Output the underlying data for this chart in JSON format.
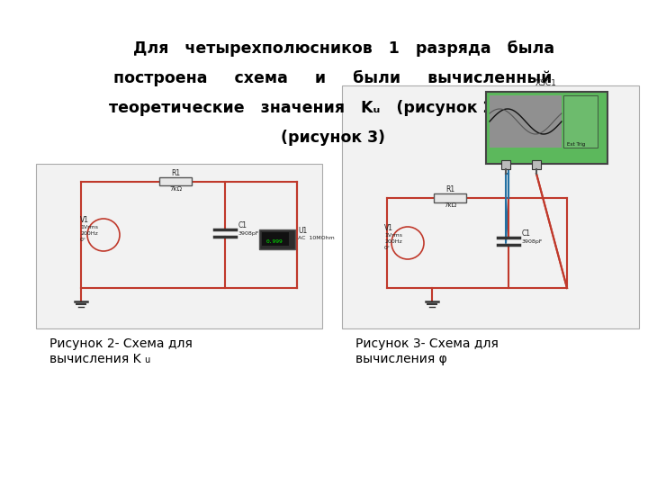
{
  "bg_color": "#ffffff",
  "text_color": "#000000",
  "wire_red": "#c0392b",
  "wire_blue": "#2471a3",
  "grid_dot_color": "#c8c8c8",
  "circuit_bg": "#f2f2f2",
  "caption1_line1": "Рисунок 2- Схема для",
  "caption1_line2": "вычисления K",
  "caption1_sub": "u",
  "caption2_line1": "Рисунок 3- Схема для",
  "caption2_line2": "вычисления φ",
  "title_lines": [
    "    Для   четырехполюсников   1   разряда   была",
    "построена     схема     и     были     вычисленный",
    "теоретические   значения   Kᵤ   (рисунок 2)   и   φ",
    "(рисунок 3)"
  ]
}
